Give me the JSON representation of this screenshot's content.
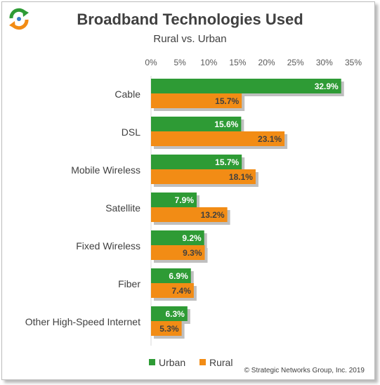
{
  "title": "Broadband Technologies Used",
  "subtitle": "Rural vs. Urban",
  "copyright": "© Strategic Networks Group, Inc. 2019",
  "chart_data": {
    "type": "bar",
    "orientation": "horizontal",
    "title": "Broadband Technologies Used",
    "subtitle": "Rural vs. Urban",
    "categories": [
      "Cable",
      "DSL",
      "Mobile Wireless",
      "Satellite",
      "Fixed Wireless",
      "Fiber",
      "Other High-Speed Internet"
    ],
    "series": [
      {
        "name": "Urban",
        "color": "#2e9b35",
        "values": [
          32.9,
          15.6,
          15.7,
          7.9,
          9.2,
          6.9,
          6.3
        ],
        "labels": [
          "32.9%",
          "15.6%",
          "15.7%",
          "7.9%",
          "9.2%",
          "6.9%",
          "6.3%"
        ]
      },
      {
        "name": "Rural",
        "color": "#f28c15",
        "values": [
          15.7,
          23.1,
          18.1,
          13.2,
          9.3,
          7.4,
          5.3
        ],
        "labels": [
          "15.7%",
          "23.1%",
          "18.1%",
          "13.2%",
          "9.3%",
          "7.4%",
          "5.3%"
        ]
      }
    ],
    "xlim": [
      0,
      35
    ],
    "ticks": [
      0,
      5,
      10,
      15,
      20,
      25,
      30,
      35
    ],
    "tick_labels": [
      "0%",
      "5%",
      "10%",
      "15%",
      "20%",
      "25%",
      "30%",
      "35%"
    ],
    "axis_position": "top",
    "grid": false,
    "legend": "bottom"
  }
}
